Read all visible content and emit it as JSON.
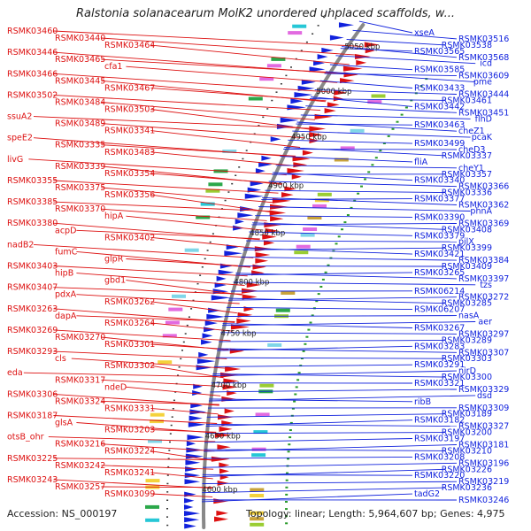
{
  "title": "Ralstonia solanacearum MolK2 unordered unplaced scaffolds, w...",
  "footer": {
    "accession": "Accession: NS_000197",
    "summary": "Topology: linear; Length: 5,964,607 bp; Genes: 4,975"
  },
  "colors": {
    "forward": "#dd1111",
    "reverse": "#1122dd",
    "backbone": "#888888",
    "rna": "#2a9a2a"
  },
  "positions": [
    "5050 kbp",
    "5000 kbp",
    "4950 kbp",
    "4900 kbp",
    "4850 kbp",
    "4800 kbp",
    "4750 kbp",
    "4700 kbp",
    "4650 kbp",
    "4600 kbp"
  ],
  "left_labels": [
    "RSMK03460",
    "RSMK03440",
    "RSMK03464",
    "RSMK03446",
    "RSMK03465",
    "cfa1",
    "RSMK03466",
    "RSMK03445",
    "RSMK03467",
    "RSMK03502",
    "RSMK03484",
    "RSMK03503",
    "ssuA2",
    "RSMK03489",
    "RSMK03341",
    "speE2",
    "RSMK03335",
    "RSMK03483",
    "livG",
    "RSMK03339",
    "RSMK03354",
    "RSMK03355",
    "RSMK03375",
    "RSMK03356",
    "RSMK03385",
    "RSMK03370",
    "hipA",
    "RSMK03380",
    "acpD",
    "RSMK03402",
    "nadB2",
    "fumC",
    "glpR",
    "RSMK03403",
    "hipB",
    "gbd1",
    "RSMK03407",
    "pdxA",
    "RSMK03262",
    "RSMK03263",
    "dapA",
    "RSMK03264",
    "RSMK03269",
    "RSMK03270",
    "RSMK03301",
    "RSMK03293",
    "cls",
    "RSMK03302",
    "eda",
    "RSMK03317",
    "ndeD",
    "RSMK03306",
    "RSMK03324",
    "RSMK03331",
    "RSMK03187",
    "glsA",
    "RSMK03203",
    "otsB_ohr",
    "RSMK03216",
    "RSMK03224",
    "RSMK03225",
    "RSMK03242",
    "RSMK03241",
    "RSMK03243",
    "RSMK03257",
    "RSMK03099"
  ],
  "right_labels": [
    "xseA",
    "RSMK03516",
    "RSMK03538",
    "RSMK03565",
    "RSMK03568",
    "icd",
    "RSMK03585",
    "RSMK03609",
    "pme",
    "RSMK03433",
    "RSMK03444",
    "RSMK03461",
    "RSMK03442",
    "RSMK03451",
    "flhD",
    "RSMK03463",
    "cheZ1",
    "pcaK",
    "RSMK03499",
    "cheD3",
    "RSMK03337",
    "fliA",
    "cheY1",
    "RSMK03357",
    "RSMK03340",
    "RSMK03366",
    "RSMK03336",
    "RSMK03377",
    "RSMK03362",
    "phnA",
    "RSMK03390",
    "RSMK03369",
    "RSMK03408",
    "RSMK03379",
    "pilX",
    "RSMK03399",
    "RSMK03421",
    "RSMK03384",
    "RSMK03409",
    "RSMK03265",
    "RSMK03397",
    "tzs",
    "RSMK06214",
    "RSMK03272",
    "RSMK03285",
    "RSMK06207",
    "nasA",
    "aer",
    "RSMK03267",
    "RSMK03297",
    "RSMK03289",
    "RSMK03283",
    "RSMK03307",
    "RSMK03303",
    "RSMK03291",
    "nirD",
    "RSMK03300",
    "RSMK03321",
    "RSMK03329",
    "dsd",
    "ribB",
    "RSMK03309",
    "RSMK03189",
    "RSMK03182",
    "RSMK03327",
    "RSMK03200",
    "RSMK03197",
    "RSMK03181",
    "RSMK03210",
    "RSMK03208",
    "RSMK03196",
    "RSMK03226",
    "RSMK03220",
    "RSMK03219",
    "RSMK03236",
    "tadG2",
    "RSMK03246"
  ]
}
